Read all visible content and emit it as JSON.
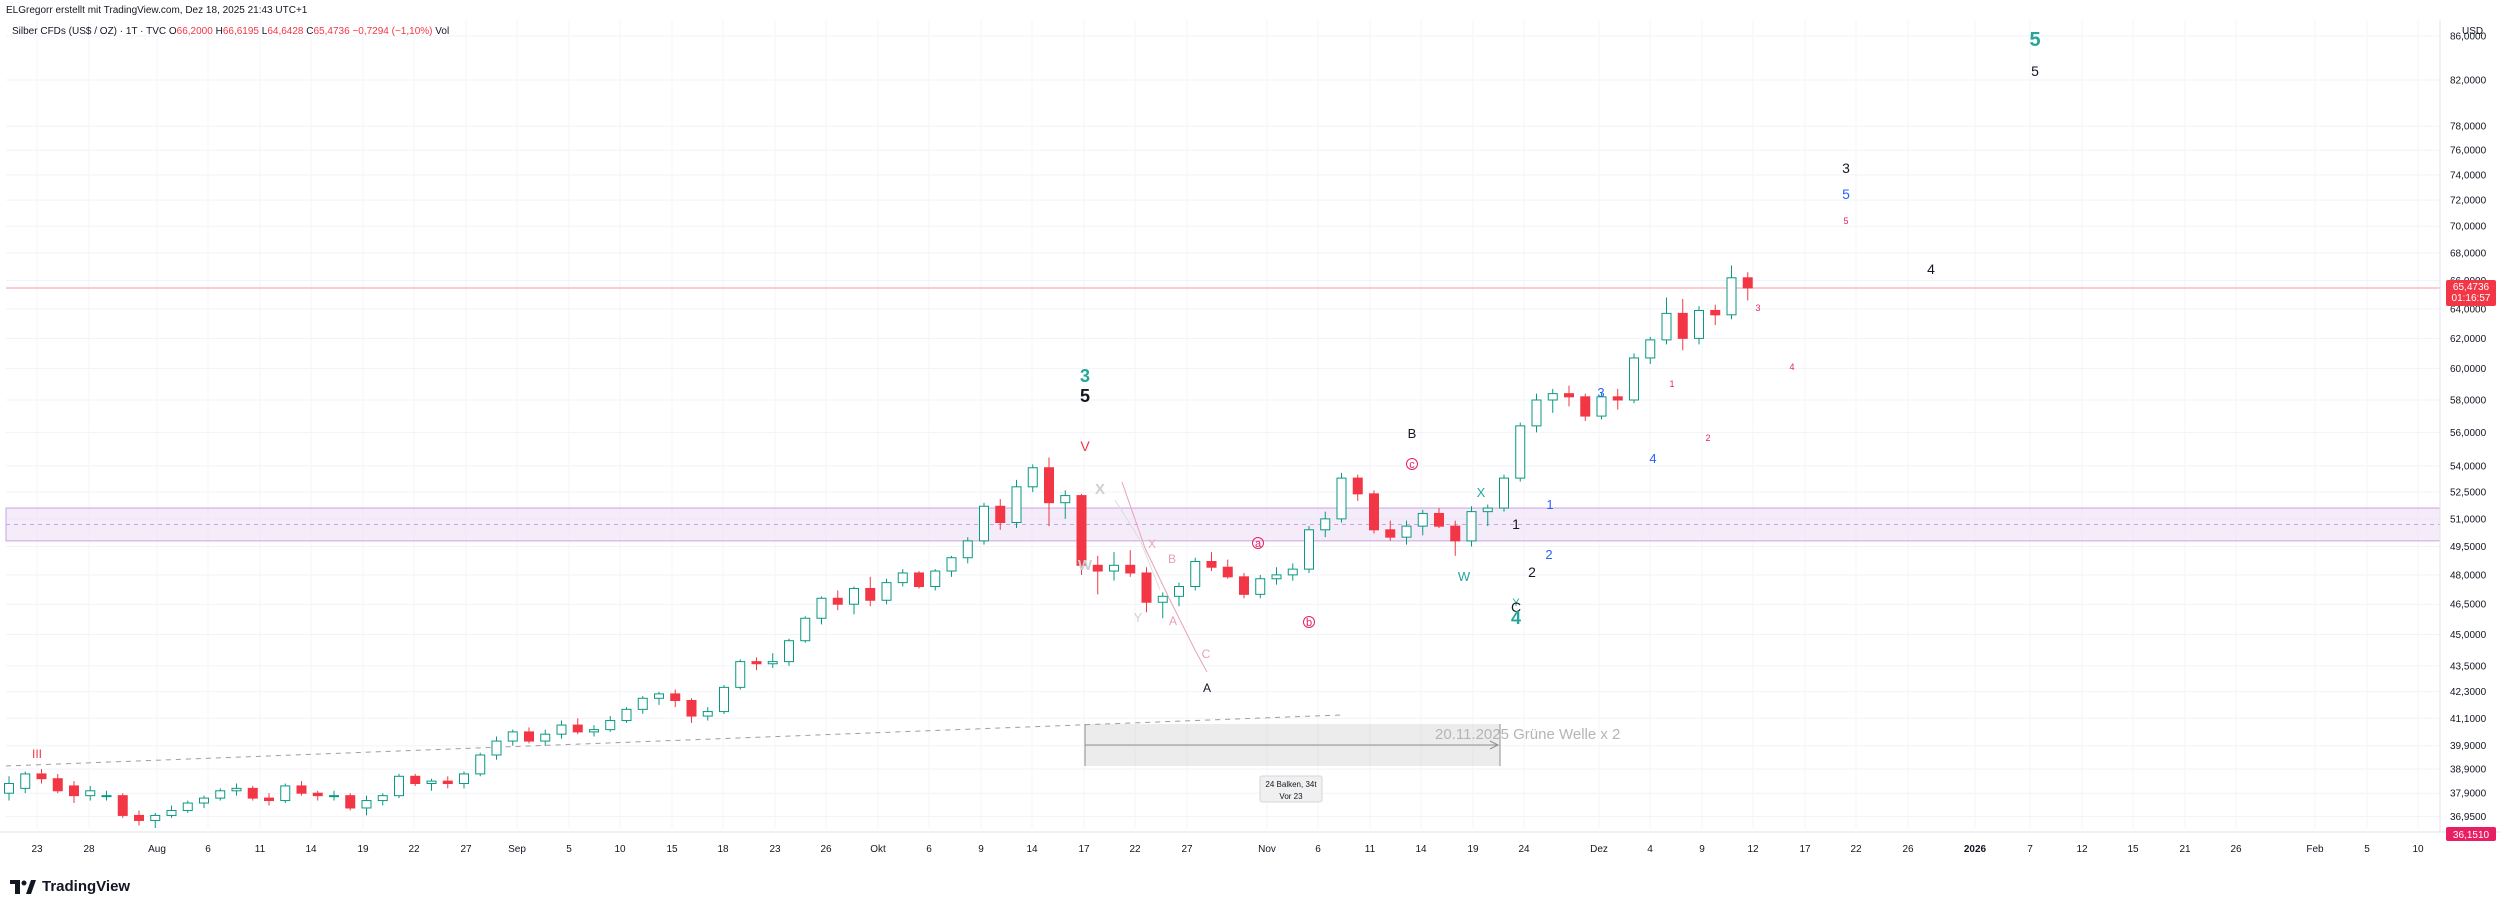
{
  "header": {
    "author_line": "ELGregorr erstellt mit TradingView.com, Dez 18, 2025 21:43 UTC+1",
    "symbol": "Silber CFDs (US$ / OZ) · 1T · TVC",
    "open_label": "O",
    "open": "66,2000",
    "high_label": "H",
    "high": "66,6195",
    "low_label": "L",
    "low": "64,6428",
    "close_label": "C",
    "close": "65,4736",
    "change": "−0,7294 (−1,10%)",
    "vol_label": "Vol",
    "currency": "USD"
  },
  "colors": {
    "up": "#089981",
    "down": "#f23645",
    "price_line": "#f23645",
    "zone": "#e9d5f5",
    "teal": "#26a69a",
    "blue": "#2962ff",
    "pink": "#e91e63"
  },
  "price_axis": {
    "ticks": [
      "86,0000",
      "82,0000",
      "78,0000",
      "76,0000",
      "74,0000",
      "72,0000",
      "70,0000",
      "68,0000",
      "66,0000",
      "64,0000",
      "62,0000",
      "60,0000",
      "58,0000",
      "56,0000",
      "54,0000",
      "52,5000",
      "51,0000",
      "49,5000",
      "48,0000",
      "46,5000",
      "45,0000",
      "43,5000",
      "42,3000",
      "41,1000",
      "39,9000",
      "38,9000",
      "37,9000",
      "36,9500"
    ],
    "last_price": "65,4736",
    "countdown": "01:16:57",
    "bottom_marker": "36,1510"
  },
  "time_axis": {
    "ticks": [
      "23",
      "28",
      "Aug",
      "6",
      "11",
      "14",
      "19",
      "22",
      "27",
      "Sep",
      "5",
      "10",
      "15",
      "18",
      "23",
      "26",
      "Okt",
      "6",
      "9",
      "14",
      "17",
      "22",
      "27",
      "Nov",
      "6",
      "11",
      "14",
      "19",
      "24",
      "Dez",
      "4",
      "9",
      "12",
      "17",
      "22",
      "26",
      "2026",
      "7",
      "12",
      "15",
      "21",
      "26",
      "Feb",
      "5",
      "10"
    ],
    "bold_ticks": [
      "2026"
    ]
  },
  "measure_tool": {
    "title": "20.11.2025 Grüne Welle x 2",
    "bars": "24 Balken, 34t",
    "ago": "Vor 23"
  },
  "wave_labels": [
    {
      "t": "III",
      "c": "#f23645"
    },
    {
      "t": "3",
      "c": "#26a69a"
    },
    {
      "t": "5",
      "c": "#131722"
    },
    {
      "t": "V",
      "c": "#f23645"
    },
    {
      "t": "X",
      "c": "#cfcfcf"
    },
    {
      "t": "W",
      "c": "#cfcfcf"
    },
    {
      "t": "Y",
      "c": "#cfcfcf"
    },
    {
      "t": "X",
      "c": "#e8a0b8"
    },
    {
      "t": "B",
      "c": "#e8a0b8"
    },
    {
      "t": "A",
      "c": "#e8a0b8"
    },
    {
      "t": "C",
      "c": "#e8a0b8"
    },
    {
      "t": "A",
      "c": "#131722"
    },
    {
      "t": "a",
      "c": "#e91e63"
    },
    {
      "t": "b",
      "c": "#e91e63"
    },
    {
      "t": "c",
      "c": "#e91e63"
    },
    {
      "t": "B",
      "c": "#131722"
    },
    {
      "t": "X",
      "c": "#26a69a"
    },
    {
      "t": "W",
      "c": "#26a69a"
    },
    {
      "t": "Y",
      "c": "#26a69a"
    },
    {
      "t": "C",
      "c": "#131722"
    },
    {
      "t": "4",
      "c": "#26a69a"
    },
    {
      "t": "1",
      "c": "#131722"
    },
    {
      "t": "2",
      "c": "#131722"
    },
    {
      "t": "1",
      "c": "#2962ff"
    },
    {
      "t": "2",
      "c": "#2962ff"
    },
    {
      "t": "3",
      "c": "#2962ff"
    },
    {
      "t": "4",
      "c": "#2962ff"
    },
    {
      "t": "1",
      "c": "#e91e63"
    },
    {
      "t": "2",
      "c": "#e91e63"
    },
    {
      "t": "3",
      "c": "#e91e63"
    },
    {
      "t": "4",
      "c": "#e91e63"
    },
    {
      "t": "3",
      "c": "#131722"
    },
    {
      "t": "5",
      "c": "#2962ff"
    },
    {
      "t": "5",
      "c": "#e91e63"
    },
    {
      "t": "4",
      "c": "#131722"
    },
    {
      "t": "5",
      "c": "#26a69a"
    },
    {
      "t": "5",
      "c": "#131722"
    }
  ],
  "brand": "TradingView",
  "chart_data": {
    "type": "candlestick",
    "title": "Silber CFDs (US$ / OZ) · 1T · TVC",
    "xlabel": "",
    "ylabel": "USD",
    "ylim": [
      36.5,
      87.5
    ],
    "y_scale": "log",
    "price_line": 65.4736,
    "zone": [
      49.8,
      51.6
    ],
    "candles": [
      {
        "o": 37.9,
        "h": 38.6,
        "l": 37.6,
        "c": 38.3
      },
      {
        "o": 38.1,
        "h": 38.8,
        "l": 37.9,
        "c": 38.7
      },
      {
        "o": 38.7,
        "h": 38.9,
        "l": 38.3,
        "c": 38.5
      },
      {
        "o": 38.5,
        "h": 38.7,
        "l": 37.9,
        "c": 38.0
      },
      {
        "o": 38.2,
        "h": 38.4,
        "l": 37.5,
        "c": 37.8
      },
      {
        "o": 37.8,
        "h": 38.2,
        "l": 37.6,
        "c": 38.0
      },
      {
        "o": 37.8,
        "h": 38.0,
        "l": 37.6,
        "c": 37.8
      },
      {
        "o": 37.8,
        "h": 37.9,
        "l": 36.9,
        "c": 37.0
      },
      {
        "o": 37.0,
        "h": 37.2,
        "l": 36.6,
        "c": 36.8
      },
      {
        "o": 36.8,
        "h": 37.1,
        "l": 36.5,
        "c": 37.0
      },
      {
        "o": 37.0,
        "h": 37.4,
        "l": 36.9,
        "c": 37.2
      },
      {
        "o": 37.2,
        "h": 37.6,
        "l": 37.1,
        "c": 37.5
      },
      {
        "o": 37.5,
        "h": 37.8,
        "l": 37.3,
        "c": 37.7
      },
      {
        "o": 37.7,
        "h": 38.1,
        "l": 37.6,
        "c": 38.0
      },
      {
        "o": 38.0,
        "h": 38.3,
        "l": 37.8,
        "c": 38.1
      },
      {
        "o": 38.1,
        "h": 38.2,
        "l": 37.6,
        "c": 37.7
      },
      {
        "o": 37.7,
        "h": 37.9,
        "l": 37.4,
        "c": 37.6
      },
      {
        "o": 37.6,
        "h": 38.3,
        "l": 37.5,
        "c": 38.2
      },
      {
        "o": 38.2,
        "h": 38.4,
        "l": 37.8,
        "c": 37.9
      },
      {
        "o": 37.9,
        "h": 38.0,
        "l": 37.6,
        "c": 37.8
      },
      {
        "o": 37.8,
        "h": 38.0,
        "l": 37.6,
        "c": 37.8
      },
      {
        "o": 37.8,
        "h": 37.9,
        "l": 37.2,
        "c": 37.3
      },
      {
        "o": 37.3,
        "h": 37.8,
        "l": 37.0,
        "c": 37.6
      },
      {
        "o": 37.6,
        "h": 37.9,
        "l": 37.4,
        "c": 37.8
      },
      {
        "o": 37.8,
        "h": 38.7,
        "l": 37.7,
        "c": 38.6
      },
      {
        "o": 38.6,
        "h": 38.7,
        "l": 38.2,
        "c": 38.3
      },
      {
        "o": 38.3,
        "h": 38.5,
        "l": 38.0,
        "c": 38.4
      },
      {
        "o": 38.4,
        "h": 38.6,
        "l": 38.1,
        "c": 38.3
      },
      {
        "o": 38.3,
        "h": 38.8,
        "l": 38.1,
        "c": 38.7
      },
      {
        "o": 38.7,
        "h": 39.6,
        "l": 38.6,
        "c": 39.5
      },
      {
        "o": 39.5,
        "h": 40.3,
        "l": 39.3,
        "c": 40.1
      },
      {
        "o": 40.1,
        "h": 40.6,
        "l": 39.9,
        "c": 40.5
      },
      {
        "o": 40.5,
        "h": 40.7,
        "l": 40.0,
        "c": 40.1
      },
      {
        "o": 40.1,
        "h": 40.6,
        "l": 39.9,
        "c": 40.4
      },
      {
        "o": 40.4,
        "h": 41.0,
        "l": 40.2,
        "c": 40.8
      },
      {
        "o": 40.8,
        "h": 41.1,
        "l": 40.4,
        "c": 40.5
      },
      {
        "o": 40.5,
        "h": 40.8,
        "l": 40.3,
        "c": 40.6
      },
      {
        "o": 40.6,
        "h": 41.2,
        "l": 40.5,
        "c": 41.0
      },
      {
        "o": 41.0,
        "h": 41.6,
        "l": 40.9,
        "c": 41.5
      },
      {
        "o": 41.5,
        "h": 42.1,
        "l": 41.3,
        "c": 42.0
      },
      {
        "o": 42.0,
        "h": 42.3,
        "l": 41.7,
        "c": 42.2
      },
      {
        "o": 42.2,
        "h": 42.4,
        "l": 41.6,
        "c": 41.9
      },
      {
        "o": 41.9,
        "h": 42.0,
        "l": 40.9,
        "c": 41.2
      },
      {
        "o": 41.2,
        "h": 41.6,
        "l": 41.0,
        "c": 41.4
      },
      {
        "o": 41.4,
        "h": 42.6,
        "l": 41.3,
        "c": 42.5
      },
      {
        "o": 42.5,
        "h": 43.8,
        "l": 42.4,
        "c": 43.7
      },
      {
        "o": 43.7,
        "h": 43.9,
        "l": 43.3,
        "c": 43.6
      },
      {
        "o": 43.6,
        "h": 44.1,
        "l": 43.4,
        "c": 43.7
      },
      {
        "o": 43.7,
        "h": 44.8,
        "l": 43.5,
        "c": 44.7
      },
      {
        "o": 44.7,
        "h": 45.9,
        "l": 44.6,
        "c": 45.8
      },
      {
        "o": 45.8,
        "h": 46.9,
        "l": 45.5,
        "c": 46.8
      },
      {
        "o": 46.8,
        "h": 47.2,
        "l": 46.2,
        "c": 46.5
      },
      {
        "o": 46.5,
        "h": 47.4,
        "l": 46.0,
        "c": 47.3
      },
      {
        "o": 47.3,
        "h": 47.9,
        "l": 46.4,
        "c": 46.7
      },
      {
        "o": 46.7,
        "h": 47.8,
        "l": 46.5,
        "c": 47.6
      },
      {
        "o": 47.6,
        "h": 48.3,
        "l": 47.4,
        "c": 48.1
      },
      {
        "o": 48.1,
        "h": 48.2,
        "l": 47.3,
        "c": 47.4
      },
      {
        "o": 47.4,
        "h": 48.3,
        "l": 47.2,
        "c": 48.2
      },
      {
        "o": 48.2,
        "h": 49.0,
        "l": 47.9,
        "c": 48.9
      },
      {
        "o": 48.9,
        "h": 50.0,
        "l": 48.6,
        "c": 49.8
      },
      {
        "o": 49.8,
        "h": 51.9,
        "l": 49.6,
        "c": 51.7
      },
      {
        "o": 51.7,
        "h": 52.1,
        "l": 50.4,
        "c": 50.8
      },
      {
        "o": 50.8,
        "h": 53.2,
        "l": 50.5,
        "c": 52.8
      },
      {
        "o": 52.8,
        "h": 54.1,
        "l": 52.5,
        "c": 53.9
      },
      {
        "o": 53.9,
        "h": 54.5,
        "l": 50.6,
        "c": 51.9
      },
      {
        "o": 51.9,
        "h": 52.6,
        "l": 51.0,
        "c": 52.3
      },
      {
        "o": 52.3,
        "h": 52.4,
        "l": 48.0,
        "c": 48.5
      },
      {
        "o": 48.5,
        "h": 49.0,
        "l": 47.0,
        "c": 48.2
      },
      {
        "o": 48.2,
        "h": 49.2,
        "l": 47.7,
        "c": 48.5
      },
      {
        "o": 48.5,
        "h": 49.3,
        "l": 47.9,
        "c": 48.1
      },
      {
        "o": 48.1,
        "h": 48.4,
        "l": 46.1,
        "c": 46.6
      },
      {
        "o": 46.6,
        "h": 47.1,
        "l": 45.8,
        "c": 46.9
      },
      {
        "o": 46.9,
        "h": 47.6,
        "l": 46.4,
        "c": 47.4
      },
      {
        "o": 47.4,
        "h": 48.9,
        "l": 47.2,
        "c": 48.7
      },
      {
        "o": 48.7,
        "h": 49.2,
        "l": 48.2,
        "c": 48.4
      },
      {
        "o": 48.4,
        "h": 48.8,
        "l": 47.8,
        "c": 47.9
      },
      {
        "o": 47.9,
        "h": 48.1,
        "l": 46.8,
        "c": 47.0
      },
      {
        "o": 47.0,
        "h": 48.0,
        "l": 46.8,
        "c": 47.8
      },
      {
        "o": 47.8,
        "h": 48.4,
        "l": 47.5,
        "c": 48.0
      },
      {
        "o": 48.0,
        "h": 48.6,
        "l": 47.7,
        "c": 48.3
      },
      {
        "o": 48.3,
        "h": 50.6,
        "l": 48.1,
        "c": 50.4
      },
      {
        "o": 50.4,
        "h": 51.4,
        "l": 50.0,
        "c": 51.0
      },
      {
        "o": 51.0,
        "h": 53.6,
        "l": 50.8,
        "c": 53.3
      },
      {
        "o": 53.3,
        "h": 53.5,
        "l": 52.0,
        "c": 52.4
      },
      {
        "o": 52.4,
        "h": 52.6,
        "l": 50.2,
        "c": 50.4
      },
      {
        "o": 50.4,
        "h": 50.9,
        "l": 49.8,
        "c": 50.0
      },
      {
        "o": 50.0,
        "h": 50.9,
        "l": 49.6,
        "c": 50.6
      },
      {
        "o": 50.6,
        "h": 51.5,
        "l": 50.1,
        "c": 51.3
      },
      {
        "o": 51.3,
        "h": 51.6,
        "l": 50.5,
        "c": 50.6
      },
      {
        "o": 50.6,
        "h": 50.9,
        "l": 49.0,
        "c": 49.8
      },
      {
        "o": 49.8,
        "h": 51.7,
        "l": 49.5,
        "c": 51.4
      },
      {
        "o": 51.4,
        "h": 51.8,
        "l": 50.6,
        "c": 51.6
      },
      {
        "o": 51.6,
        "h": 53.5,
        "l": 51.4,
        "c": 53.3
      },
      {
        "o": 53.3,
        "h": 56.6,
        "l": 53.1,
        "c": 56.4
      },
      {
        "o": 56.4,
        "h": 58.4,
        "l": 56.0,
        "c": 58.0
      },
      {
        "o": 58.0,
        "h": 58.7,
        "l": 57.2,
        "c": 58.4
      },
      {
        "o": 58.4,
        "h": 58.9,
        "l": 57.6,
        "c": 58.2
      },
      {
        "o": 58.2,
        "h": 58.4,
        "l": 56.7,
        "c": 57.0
      },
      {
        "o": 57.0,
        "h": 58.5,
        "l": 56.8,
        "c": 58.2
      },
      {
        "o": 58.2,
        "h": 58.7,
        "l": 57.4,
        "c": 58.0
      },
      {
        "o": 58.0,
        "h": 61.0,
        "l": 57.8,
        "c": 60.7
      },
      {
        "o": 60.7,
        "h": 62.1,
        "l": 60.3,
        "c": 61.9
      },
      {
        "o": 61.9,
        "h": 64.8,
        "l": 61.6,
        "c": 63.7
      },
      {
        "o": 63.7,
        "h": 64.7,
        "l": 61.2,
        "c": 62.0
      },
      {
        "o": 62.0,
        "h": 64.2,
        "l": 61.6,
        "c": 63.9
      },
      {
        "o": 63.9,
        "h": 64.3,
        "l": 62.9,
        "c": 63.6
      },
      {
        "o": 63.6,
        "h": 67.1,
        "l": 63.3,
        "c": 66.2
      },
      {
        "o": 66.2,
        "h": 66.6,
        "l": 64.6,
        "c": 65.4736
      }
    ]
  }
}
